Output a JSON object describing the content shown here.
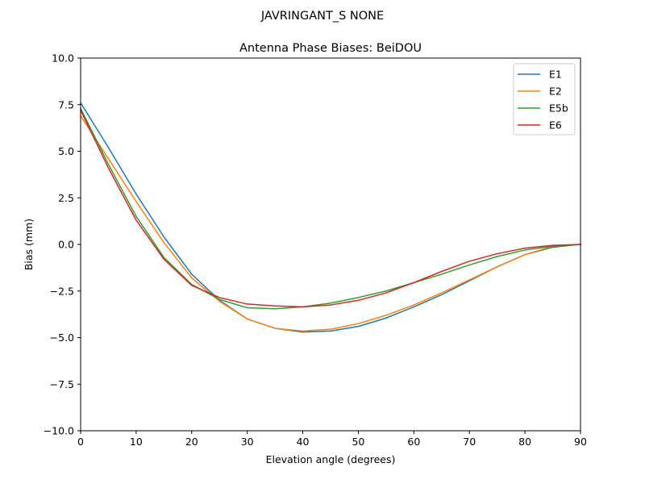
{
  "figure": {
    "suptitle": "JAVRINGANT_S    NONE"
  },
  "chart_data": {
    "type": "line",
    "title": "Antenna Phase Biases: BeiDOU",
    "xlabel": "Elevation angle (degrees)",
    "ylabel": "Bias (mm)",
    "xlim": [
      0,
      90
    ],
    "ylim": [
      -10,
      10
    ],
    "x_ticks": [
      0,
      10,
      20,
      30,
      40,
      50,
      60,
      70,
      80,
      90
    ],
    "x_tick_labels": [
      "0",
      "10",
      "20",
      "30",
      "40",
      "50",
      "60",
      "70",
      "80",
      "90"
    ],
    "y_ticks": [
      10,
      7.5,
      5,
      2.5,
      0,
      -2.5,
      -5,
      -7.5,
      -10
    ],
    "y_tick_labels": [
      "10.0",
      "7.5",
      "5.0",
      "2.5",
      "0.0",
      "−2.5",
      "−5.0",
      "−7.5",
      "−10.0"
    ],
    "grid": false,
    "legend_position": "upper right",
    "x": [
      0,
      5,
      10,
      15,
      20,
      25,
      30,
      35,
      40,
      45,
      50,
      55,
      60,
      65,
      70,
      75,
      80,
      85,
      90
    ],
    "series": [
      {
        "name": "E1",
        "color": "#1f77b4",
        "values": [
          7.6,
          5.2,
          2.7,
          0.4,
          -1.6,
          -3.0,
          -4.0,
          -4.5,
          -4.7,
          -4.65,
          -4.4,
          -3.95,
          -3.35,
          -2.7,
          -1.95,
          -1.2,
          -0.55,
          -0.15,
          0.0
        ]
      },
      {
        "name": "E2",
        "color": "#ff7f0e",
        "values": [
          6.9,
          4.6,
          2.3,
          0.1,
          -1.8,
          -3.05,
          -4.0,
          -4.5,
          -4.65,
          -4.55,
          -4.25,
          -3.8,
          -3.25,
          -2.6,
          -1.9,
          -1.2,
          -0.55,
          -0.1,
          0.0
        ]
      },
      {
        "name": "E5b",
        "color": "#2ca02c",
        "values": [
          7.3,
          4.3,
          1.5,
          -0.7,
          -2.15,
          -2.95,
          -3.4,
          -3.45,
          -3.35,
          -3.15,
          -2.85,
          -2.5,
          -2.05,
          -1.6,
          -1.1,
          -0.65,
          -0.3,
          -0.1,
          0.0
        ]
      },
      {
        "name": "E6",
        "color": "#d62728",
        "values": [
          7.2,
          4.1,
          1.3,
          -0.8,
          -2.2,
          -2.85,
          -3.2,
          -3.3,
          -3.35,
          -3.25,
          -3.0,
          -2.6,
          -2.05,
          -1.45,
          -0.9,
          -0.5,
          -0.2,
          -0.05,
          0.0
        ]
      }
    ]
  }
}
